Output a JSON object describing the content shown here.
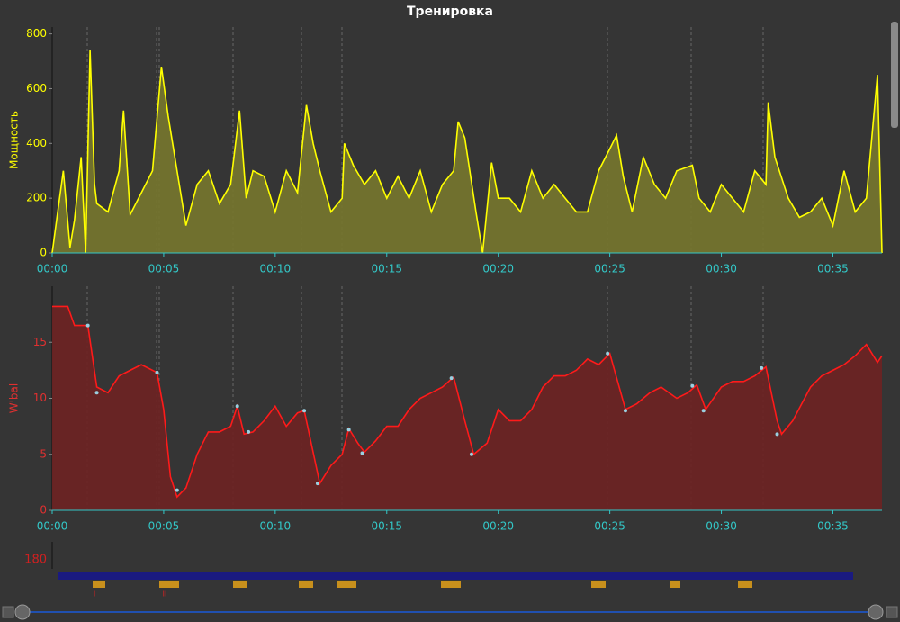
{
  "title": "Тренировка",
  "chart_data": [
    {
      "type": "area",
      "ylabel": "Мощность",
      "color": "#ffff00",
      "fill": "#77772e",
      "x": [
        0,
        0.3,
        0.5,
        0.8,
        1,
        1.3,
        1.5,
        1.7,
        1.9,
        2,
        2.5,
        3,
        3.2,
        3.5,
        4,
        4.5,
        4.9,
        5.2,
        5.5,
        6,
        6.5,
        7,
        7.5,
        8,
        8.4,
        8.7,
        9,
        9.5,
        10,
        10.5,
        11,
        11.4,
        11.7,
        12,
        12.5,
        13,
        13.1,
        13.5,
        14,
        14.5,
        15,
        15.5,
        16,
        16.5,
        17,
        17.5,
        18,
        18.2,
        18.5,
        19,
        19.3,
        19.7,
        20,
        20.5,
        21,
        21.5,
        22,
        22.5,
        23,
        23.5,
        24,
        24.5,
        25,
        25.3,
        25.6,
        26,
        26.5,
        27,
        27.5,
        28,
        28.7,
        29,
        29.5,
        30,
        30.5,
        31,
        31.5,
        32,
        32.1,
        32.4,
        33,
        33.5,
        34,
        34.5,
        35,
        35.5,
        36,
        36.5,
        37,
        37.2
      ],
      "values": [
        0,
        180,
        300,
        20,
        120,
        350,
        0,
        740,
        250,
        180,
        150,
        300,
        520,
        140,
        220,
        300,
        680,
        500,
        350,
        100,
        250,
        300,
        180,
        250,
        520,
        200,
        300,
        280,
        150,
        300,
        220,
        540,
        400,
        300,
        150,
        200,
        400,
        320,
        250,
        300,
        200,
        280,
        200,
        300,
        150,
        250,
        300,
        480,
        420,
        150,
        0,
        330,
        200,
        200,
        150,
        300,
        200,
        250,
        200,
        150,
        150,
        300,
        380,
        430,
        280,
        150,
        350,
        250,
        200,
        300,
        320,
        200,
        150,
        250,
        200,
        150,
        300,
        250,
        550,
        350,
        200,
        130,
        150,
        200,
        100,
        300,
        150,
        200,
        650,
        0
      ],
      "xlim": [
        0,
        37.2
      ],
      "ylim": [
        0,
        825
      ],
      "xticks": [
        {
          "value": 0,
          "label": "00:00"
        },
        {
          "value": 5,
          "label": "00:05"
        },
        {
          "value": 10,
          "label": "00:10"
        },
        {
          "value": 15,
          "label": "00:15"
        },
        {
          "value": 20,
          "label": "00:20"
        },
        {
          "value": 25,
          "label": "00:25"
        },
        {
          "value": 30,
          "label": "00:30"
        },
        {
          "value": 35,
          "label": "00:35"
        }
      ],
      "yticks": [
        0,
        200,
        400,
        600,
        800
      ]
    },
    {
      "type": "area",
      "ylabel": "W'bal",
      "color": "#ff1a1a",
      "fill": "#6e2222",
      "x": [
        0,
        0.7,
        1,
        1.6,
        2,
        2.5,
        3,
        3.5,
        4,
        4.7,
        5,
        5.3,
        5.6,
        6,
        6.5,
        7,
        7.5,
        8,
        8.3,
        8.6,
        9,
        9.5,
        10,
        10.5,
        11,
        11.3,
        12,
        12.5,
        13,
        13.3,
        13.7,
        14,
        14.5,
        15,
        15.5,
        16,
        16.5,
        17,
        17.5,
        18,
        18.5,
        18.9,
        19.5,
        20,
        20.5,
        21,
        21.5,
        22,
        22.5,
        23,
        23.5,
        24,
        24.5,
        25,
        25.7,
        26.2,
        26.8,
        27.3,
        28,
        28.5,
        28.9,
        29.3,
        30,
        30.5,
        31,
        31.5,
        32,
        32.5,
        32.7,
        33.2,
        34,
        34.5,
        35,
        35.5,
        36,
        36.5,
        37,
        37.2
      ],
      "values": [
        18.2,
        18.2,
        16.5,
        16.5,
        11,
        10.5,
        12,
        12.5,
        13,
        12.3,
        9,
        3,
        1.2,
        2,
        5,
        7,
        7,
        7.5,
        9.3,
        6.8,
        7,
        8,
        9.3,
        7.5,
        8.7,
        8.9,
        2.4,
        4,
        5,
        7.3,
        6,
        5.2,
        6.2,
        7.5,
        7.5,
        9,
        10,
        10.5,
        11,
        11.9,
        8,
        5,
        6,
        9,
        8,
        8,
        9,
        11,
        12,
        12,
        12.5,
        13.5,
        13,
        14,
        9,
        9.5,
        10.5,
        11,
        10,
        10.5,
        11.2,
        9,
        11,
        11.5,
        11.5,
        12,
        12.8,
        8,
        6.8,
        8,
        11,
        12,
        12.5,
        13,
        13.8,
        14.8,
        13.2,
        13.8
      ],
      "markers": {
        "color": "#9ad0e0",
        "x": [
          1.6,
          2,
          4.7,
          5.6,
          8.3,
          8.8,
          11.3,
          11.9,
          13.3,
          13.9,
          17.9,
          18.8,
          24.9,
          25.7,
          28.7,
          29.2,
          31.8,
          32.5
        ],
        "values": [
          16.5,
          10.5,
          12.3,
          1.8,
          9.3,
          7,
          8.9,
          2.4,
          7.2,
          5.1,
          11.8,
          5,
          14,
          8.9,
          11.1,
          8.9,
          12.7,
          6.8
        ]
      },
      "xlim": [
        0,
        37.2
      ],
      "ylim": [
        0,
        20
      ],
      "xticks": [
        {
          "value": 0,
          "label": "00:00"
        },
        {
          "value": 5,
          "label": "00:05"
        },
        {
          "value": 10,
          "label": "00:10"
        },
        {
          "value": 15,
          "label": "00:15"
        },
        {
          "value": 20,
          "label": "00:20"
        },
        {
          "value": 25,
          "label": "00:25"
        },
        {
          "value": 30,
          "label": "00:30"
        },
        {
          "value": 35,
          "label": "00:35"
        }
      ],
      "yticks": [
        0,
        5,
        10,
        15
      ]
    },
    {
      "type": "intervals",
      "yticks": [
        180
      ],
      "interval_labels": [
        "I",
        "II"
      ]
    }
  ]
}
